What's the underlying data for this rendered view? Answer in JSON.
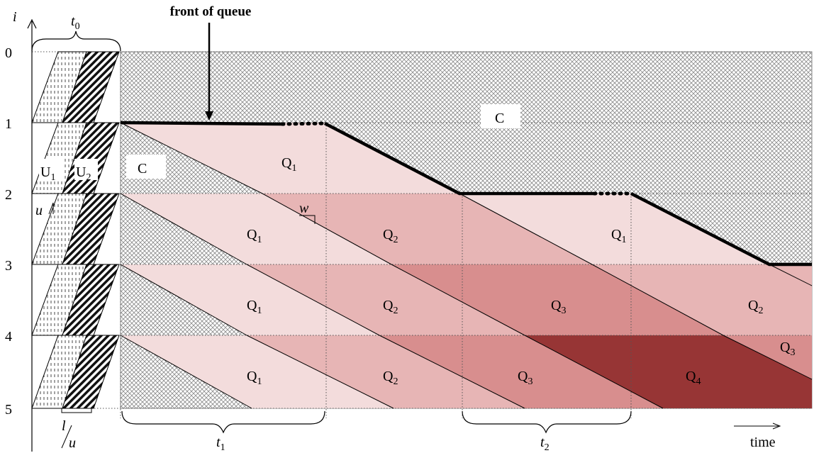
{
  "labels": {
    "title": "front of queue",
    "y_axis": "i",
    "x_axis": "time",
    "rows": [
      "0",
      "1",
      "2",
      "3",
      "4",
      "5"
    ],
    "t0_base": "t",
    "t0_sub": "0",
    "t1_base": "t",
    "t1_sub": "1",
    "t2_base": "t",
    "t2_sub": "2",
    "u": "u",
    "w": "w",
    "l_over_u_num": "l",
    "l_over_u_den": "u",
    "u1_base": "U",
    "u1_sub": "1",
    "u2_base": "U",
    "u2_sub": "2",
    "c": "C",
    "q_base": "Q",
    "q1": "1",
    "q2": "2",
    "q3": "3",
    "q4": "4"
  },
  "colors": {
    "q1": "#f3dcdc",
    "q2": "#e7b5b5",
    "q3": "#d88e8e",
    "q4": "#973535",
    "crosshatch": "#8a8a8a"
  }
}
